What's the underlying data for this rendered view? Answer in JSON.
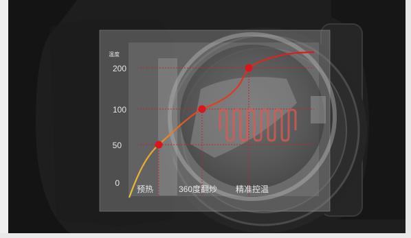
{
  "chart_data": {
    "type": "line",
    "ylabel": "温度",
    "y_ticks": [
      "200",
      "100",
      "50",
      "0"
    ],
    "stage_labels": [
      "预热",
      "360度翻炒",
      "精准控温"
    ],
    "highlight_points": [
      {
        "stage": "预热",
        "y": 50
      },
      {
        "stage": "360度翻炒",
        "y": 100
      },
      {
        "stage": "精准控温",
        "y": 200
      }
    ],
    "grid": true,
    "colors": {
      "curve_start": "#e8c233",
      "curve_end": "#d81b1b",
      "points": "#d8161b",
      "guides": "#c0252b",
      "heat_wave": "#e05a50"
    }
  }
}
